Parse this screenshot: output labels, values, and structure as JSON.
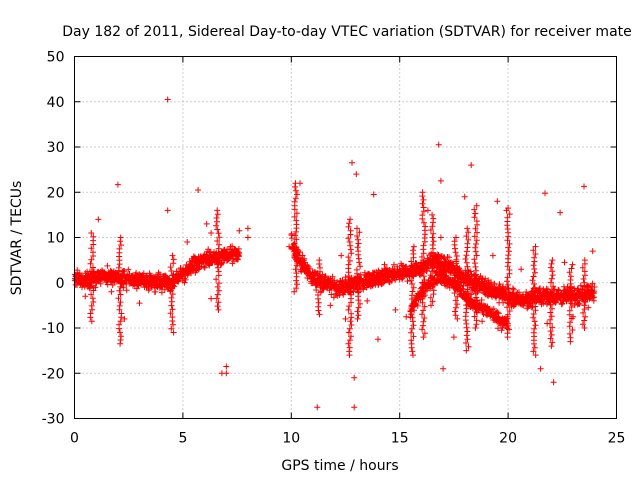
{
  "chart_data": {
    "type": "scatter",
    "title": "Day 182 of 2011, Sidereal Day-to-day VTEC variation (SDTVAR) for receiver mate",
    "xlabel": "GPS time / hours",
    "ylabel": "SDTVAR / TECUs",
    "xlim": [
      0,
      25
    ],
    "ylim": [
      -30,
      50
    ],
    "xticks": [
      "0",
      "5",
      "10",
      "15",
      "20",
      "25"
    ],
    "yticks": [
      "-30",
      "-20",
      "-10",
      "0",
      "10",
      "20",
      "30",
      "40",
      "50"
    ],
    "grid": true,
    "series": [
      {
        "name": "SDTVAR",
        "color": "#ff0000",
        "marker": "+",
        "trend": [
          [
            0.0,
            1.0
          ],
          [
            0.5,
            0.5
          ],
          [
            1.0,
            1.0
          ],
          [
            1.5,
            1.5
          ],
          [
            2.0,
            1.0
          ],
          [
            2.5,
            0.5
          ],
          [
            3.0,
            0.5
          ],
          [
            3.5,
            0.0
          ],
          [
            4.0,
            0.0
          ],
          [
            4.5,
            0.0
          ],
          [
            5.0,
            2.0
          ],
          [
            5.5,
            4.0
          ],
          [
            6.0,
            5.0
          ],
          [
            6.5,
            5.5
          ],
          [
            7.0,
            6.0
          ],
          [
            7.5,
            6.0
          ],
          [
            10.0,
            9.0
          ],
          [
            10.5,
            4.0
          ],
          [
            11.0,
            1.0
          ],
          [
            11.5,
            0.0
          ],
          [
            12.0,
            -1.0
          ],
          [
            12.5,
            -1.0
          ],
          [
            13.0,
            0.0
          ],
          [
            13.5,
            0.5
          ],
          [
            14.0,
            1.0
          ],
          [
            14.5,
            1.5
          ],
          [
            15.0,
            2.0
          ],
          [
            15.5,
            2.5
          ],
          [
            16.0,
            3.5
          ],
          [
            16.5,
            5.0
          ],
          [
            17.0,
            4.0
          ],
          [
            17.5,
            3.0
          ],
          [
            18.0,
            1.0
          ],
          [
            18.5,
            0.0
          ],
          [
            19.0,
            -1.0
          ],
          [
            19.5,
            -2.0
          ],
          [
            20.0,
            -3.0
          ],
          [
            20.5,
            -4.0
          ],
          [
            21.0,
            -3.5
          ],
          [
            21.5,
            -3.0
          ],
          [
            22.0,
            -3.0
          ],
          [
            22.5,
            -3.0
          ],
          [
            23.0,
            -3.0
          ],
          [
            23.5,
            -2.5
          ],
          [
            24.0,
            -2.0
          ]
        ],
        "branches": [
          [
            [
              15.5,
              -6.0
            ],
            [
              16.0,
              -2.0
            ],
            [
              16.5,
              1.0
            ],
            [
              17.0,
              1.0
            ],
            [
              17.5,
              0.0
            ],
            [
              18.0,
              -3.0
            ],
            [
              18.5,
              -5.0
            ],
            [
              19.0,
              -6.0
            ],
            [
              19.5,
              -8.0
            ],
            [
              20.0,
              -9.0
            ]
          ]
        ],
        "spikes": [
          [
            [
              0.8,
              -8.5
            ],
            [
              0.8,
              11.0
            ]
          ],
          [
            [
              2.1,
              -13.5
            ],
            [
              2.1,
              10.0
            ]
          ],
          [
            [
              4.5,
              -11.0
            ],
            [
              4.5,
              6.0
            ]
          ],
          [
            [
              6.6,
              -6.0
            ],
            [
              6.6,
              16.0
            ]
          ],
          [
            [
              10.2,
              -2.0
            ],
            [
              10.2,
              22.0
            ]
          ],
          [
            [
              11.3,
              -7.0
            ],
            [
              11.3,
              5.0
            ]
          ],
          [
            [
              12.7,
              -16.0
            ],
            [
              12.7,
              14.0
            ]
          ],
          [
            [
              13.1,
              -8.0
            ],
            [
              13.1,
              12.0
            ]
          ],
          [
            [
              15.6,
              -16.0
            ],
            [
              15.6,
              8.0
            ]
          ],
          [
            [
              16.1,
              -12.0
            ],
            [
              16.1,
              20.0
            ]
          ],
          [
            [
              16.5,
              -5.0
            ],
            [
              16.5,
              15.0
            ]
          ],
          [
            [
              17.6,
              -8.0
            ],
            [
              17.6,
              10.0
            ]
          ],
          [
            [
              18.1,
              -15.0
            ],
            [
              18.1,
              12.0
            ]
          ],
          [
            [
              18.5,
              -10.0
            ],
            [
              18.5,
              17.0
            ]
          ],
          [
            [
              20.0,
              -12.0
            ],
            [
              20.0,
              16.0
            ]
          ],
          [
            [
              21.2,
              -16.0
            ],
            [
              21.2,
              8.0
            ]
          ],
          [
            [
              22.0,
              -14.0
            ],
            [
              22.0,
              5.0
            ]
          ],
          [
            [
              22.9,
              -13.0
            ],
            [
              22.9,
              4.0
            ]
          ],
          [
            [
              23.5,
              -10.0
            ],
            [
              23.5,
              5.0
            ]
          ]
        ],
        "outliers": [
          [
            4.3,
            40.5
          ],
          [
            2.0,
            21.7
          ],
          [
            5.7,
            20.5
          ],
          [
            7.0,
            -18.5
          ],
          [
            7.0,
            -20.0
          ],
          [
            11.2,
            -27.5
          ],
          [
            12.8,
            26.5
          ],
          [
            13.0,
            24.0
          ],
          [
            12.9,
            -21.0
          ],
          [
            12.9,
            -27.5
          ],
          [
            16.8,
            30.5
          ],
          [
            16.9,
            22.5
          ],
          [
            18.3,
            26.0
          ],
          [
            18.0,
            19.0
          ],
          [
            20.0,
            16.5
          ],
          [
            21.7,
            19.8
          ],
          [
            22.4,
            15.5
          ],
          [
            23.5,
            21.3
          ],
          [
            23.9,
            7.0
          ],
          [
            1.1,
            14.0
          ],
          [
            4.3,
            16.0
          ],
          [
            6.8,
            -20.0
          ],
          [
            10.4,
            22.0
          ],
          [
            13.8,
            19.5
          ],
          [
            14.0,
            -12.5
          ],
          [
            17.5,
            -12.0
          ],
          [
            17.0,
            -19.0
          ],
          [
            19.5,
            18.0
          ],
          [
            22.1,
            -22.0
          ],
          [
            21.5,
            -19.0
          ],
          [
            8.0,
            12.0
          ],
          [
            8.0,
            10.0
          ],
          [
            12.5,
            -8.0
          ],
          [
            9.9,
            8.0
          ],
          [
            16.3,
            16.0
          ],
          [
            3.0,
            -4.5
          ],
          [
            2.3,
            -8.0
          ],
          [
            6.3,
            -3.5
          ],
          [
            7.2,
            8.0
          ],
          [
            0.5,
            -3.0
          ],
          [
            1.7,
            -2.0
          ],
          [
            11.8,
            -5.0
          ],
          [
            13.5,
            -4.0
          ],
          [
            14.8,
            -6.0
          ],
          [
            15.3,
            -7.5
          ],
          [
            18.8,
            -8.5
          ],
          [
            19.7,
            -10.5
          ],
          [
            21.8,
            -9.0
          ],
          [
            23.0,
            -7.5
          ],
          [
            23.7,
            -5.5
          ],
          [
            12.3,
            6.0
          ],
          [
            14.3,
            4.0
          ],
          [
            16.9,
            10.0
          ],
          [
            19.3,
            6.0
          ],
          [
            20.6,
            3.0
          ],
          [
            5.2,
            9.0
          ],
          [
            6.1,
            13.0
          ],
          [
            6.3,
            11.0
          ],
          [
            7.6,
            11.5
          ],
          [
            22.6,
            4.5
          ]
        ]
      }
    ]
  }
}
